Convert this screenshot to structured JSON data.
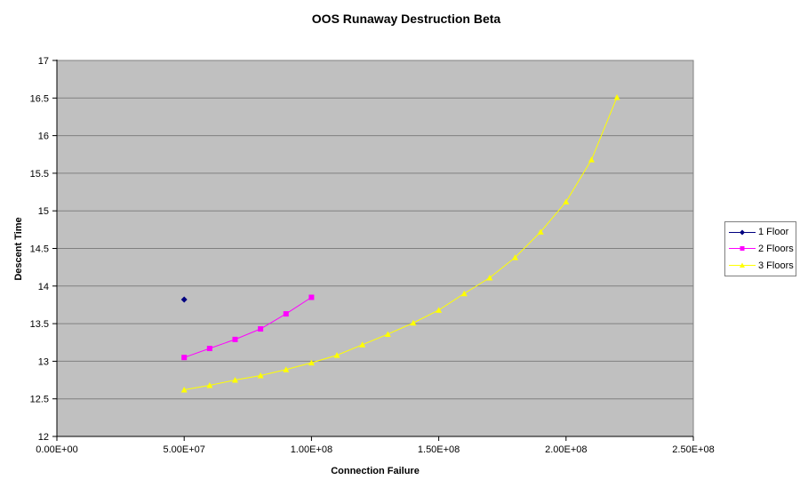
{
  "chart_data": {
    "type": "line",
    "title": "OOS Runaway Destruction Beta",
    "xlabel": "Connection Failure",
    "ylabel": "Descent Time",
    "xlim": [
      0,
      250000000
    ],
    "ylim": [
      12,
      17
    ],
    "x_ticks": [
      0,
      50000000,
      100000000,
      150000000,
      200000000,
      250000000
    ],
    "x_tick_labels": [
      "0.00E+00",
      "5.00E+07",
      "1.00E+08",
      "1.50E+08",
      "2.00E+08",
      "2.50E+08"
    ],
    "y_ticks": [
      12,
      12.5,
      13,
      13.5,
      14,
      14.5,
      15,
      15.5,
      16,
      16.5,
      17
    ],
    "y_tick_labels": [
      "12",
      "12.5",
      "13",
      "13.5",
      "14",
      "14.5",
      "15",
      "15.5",
      "16",
      "16.5",
      "17"
    ],
    "grid": "horizontal-major",
    "legend_position": "right",
    "colors": {
      "plot_background": "#c0c0c0",
      "gridline": "#808080",
      "axis_line": "#000000",
      "plot_border": "#808080",
      "series1": "#000080",
      "series2": "#ff00ff",
      "series3": "#ffff00"
    },
    "series": [
      {
        "name": "1 Floor",
        "color": "#000080",
        "marker": "diamond",
        "x": [
          50000000
        ],
        "y": [
          13.82
        ]
      },
      {
        "name": "2 Floors",
        "color": "#ff00ff",
        "marker": "square",
        "x": [
          50000000,
          60000000,
          70000000,
          80000000,
          90000000,
          100000000
        ],
        "y": [
          13.05,
          13.17,
          13.29,
          13.43,
          13.63,
          13.85
        ]
      },
      {
        "name": "3 Floors",
        "color": "#ffff00",
        "marker": "triangle",
        "x": [
          50000000,
          60000000,
          70000000,
          80000000,
          90000000,
          100000000,
          110000000,
          120000000,
          130000000,
          140000000,
          150000000,
          160000000,
          170000000,
          180000000,
          190000000,
          200000000,
          210000000,
          220000000
        ],
        "y": [
          12.62,
          12.68,
          12.75,
          12.81,
          12.89,
          12.98,
          13.08,
          13.22,
          13.36,
          13.51,
          13.68,
          13.9,
          14.11,
          14.38,
          14.72,
          15.12,
          15.68,
          16.51
        ]
      }
    ]
  }
}
